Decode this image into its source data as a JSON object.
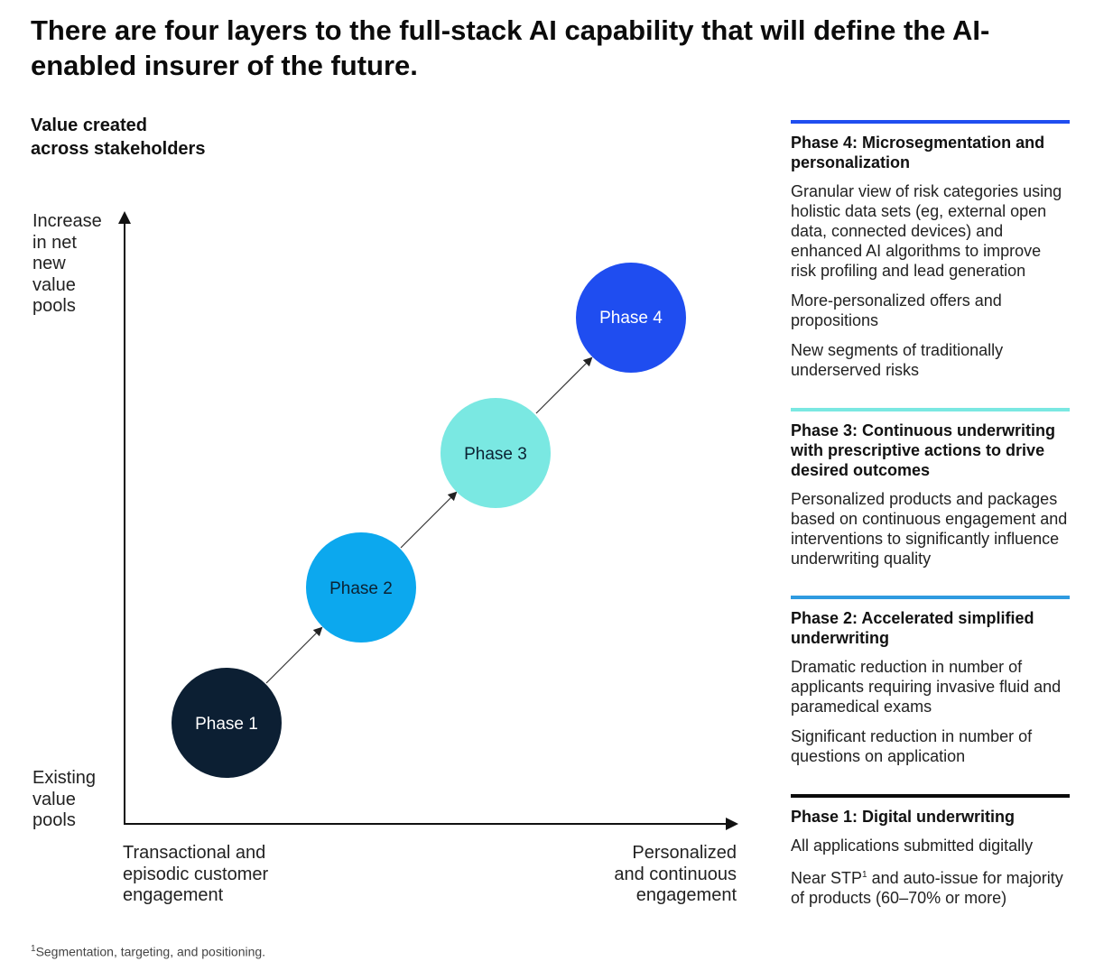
{
  "title": "There are four layers to the full-stack AI capability that will define the AI-enabled insurer of the future.",
  "subtitle_line1": "Value created",
  "subtitle_line2": "across stakeholders",
  "y_axis": {
    "top_lines": [
      "Increase",
      "in net",
      "new",
      "value",
      "pools"
    ],
    "bottom_lines": [
      "Existing",
      "value",
      "pools"
    ]
  },
  "x_axis": {
    "left_lines": [
      "Transactional and",
      "episodic customer",
      "engagement"
    ],
    "right_lines": [
      "Personalized",
      "and continuous",
      "engagement"
    ]
  },
  "phases": [
    {
      "label": "Phase 1",
      "color": "#0c1f33",
      "text_color": "#ffffff"
    },
    {
      "label": "Phase 2",
      "color": "#0ca8ee",
      "text_color": "#0b2233"
    },
    {
      "label": "Phase 3",
      "color": "#7ae8e2",
      "text_color": "#0b2233"
    },
    {
      "label": "Phase 4",
      "color": "#1f4df0",
      "text_color": "#ffffff"
    }
  ],
  "panels": {
    "phase4": {
      "bar_color": "#1f4df0",
      "title": "Phase 4: Microsegmentation and personalization",
      "items": [
        "Granular view of risk categories using holistic data sets (eg, external open data, connected devices) and enhanced AI algorithms to improve risk profiling and lead generation",
        "More-personalized offers and propositions",
        "New segments of traditionally underserved risks"
      ]
    },
    "phase3": {
      "bar_color": "#7ae8e2",
      "title": "Phase 3: Continuous underwriting with prescriptive actions to drive desired outcomes",
      "items": [
        "Personalized products and packages based on continuous engagement and interventions to significantly influence underwriting quality"
      ]
    },
    "phase2": {
      "bar_color": "#2f9be0",
      "title": "Phase 2: Accelerated simplified underwriting",
      "items": [
        "Dramatic reduction in number of applicants requiring invasive fluid and paramedical exams",
        "Significant reduction in number of questions on application"
      ]
    },
    "phase1": {
      "bar_color": "#0b0b0b",
      "title": "Phase 1: Digital underwriting",
      "item1": "All applications submitted digitally",
      "item2_prefix": "Near STP",
      "item2_sup": "1",
      "item2_suffix": " and auto-issue for majority of products (60–70% or more)"
    }
  },
  "footnote_sup": "1",
  "footnote_text": "Segmentation, targeting, and positioning."
}
